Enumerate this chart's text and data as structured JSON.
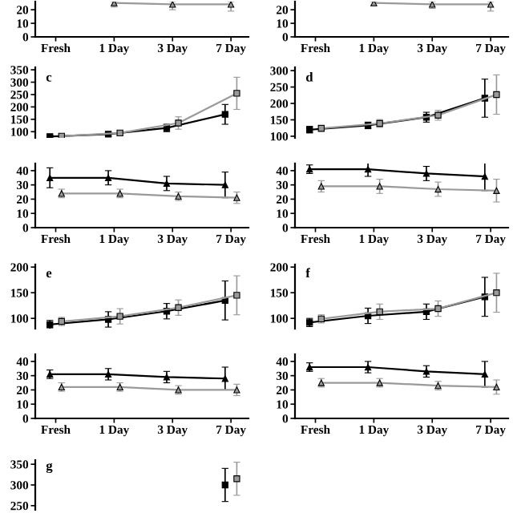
{
  "chart_data": [
    {
      "type": "line",
      "categories": [
        "Fresh",
        "1 Day",
        "3 Day",
        "7 Day"
      ],
      "ylim": [
        0,
        26
      ],
      "yticks": [
        0,
        10,
        20
      ],
      "series": [
        {
          "color": "#9a9a9a",
          "marker": "triangle",
          "values": [
            null,
            25,
            24,
            24
          ],
          "errors": [
            null,
            [
              22,
              26
            ],
            [
              20,
              26
            ],
            [
              19,
              26
            ]
          ]
        }
      ]
    },
    {
      "type": "line",
      "categories": [
        "Fresh",
        "1 Day",
        "3 Day",
        "7 Day"
      ],
      "ylim": [
        0,
        26
      ],
      "yticks": [
        0,
        10,
        20
      ],
      "series": [
        {
          "color": "#9a9a9a",
          "marker": "triangle",
          "values": [
            null,
            25,
            24,
            24
          ],
          "errors": [
            null,
            [
              23,
              26
            ],
            [
              21,
              26
            ],
            [
              19,
              26
            ]
          ]
        }
      ]
    },
    {
      "type": "line",
      "categories": [
        null,
        null,
        null,
        null
      ],
      "ylim": [
        75,
        360
      ],
      "yticks": [
        100,
        150,
        200,
        250,
        300,
        350
      ],
      "tick_labels": "y",
      "annotations": [
        "c"
      ],
      "series": [
        {
          "color": "#000000",
          "marker": "square",
          "values": [
            80,
            90,
            115,
            170
          ],
          "errors": [
            6,
            8,
            15,
            40
          ]
        },
        {
          "color": "#9a9a9a",
          "marker": "square",
          "values": [
            82,
            95,
            135,
            255
          ],
          "errors": [
            8,
            10,
            25,
            65
          ]
        }
      ]
    },
    {
      "type": "line",
      "categories": [
        null,
        null,
        null,
        null
      ],
      "ylim": [
        95,
        310
      ],
      "yticks": [
        100,
        150,
        200,
        250,
        300
      ],
      "tick_labels": "y",
      "annotations": [
        "d"
      ],
      "series": [
        {
          "color": "#000000",
          "marker": "square",
          "values": [
            120,
            133,
            158,
            216
          ],
          "errors": [
            10,
            10,
            15,
            58
          ]
        },
        {
          "color": "#9a9a9a",
          "marker": "square",
          "values": [
            124,
            139,
            164,
            227
          ],
          "errors": [
            10,
            12,
            15,
            60
          ]
        }
      ]
    },
    {
      "type": "line",
      "categories": [
        "Fresh",
        "1 Day",
        "3 Day",
        "7 Day"
      ],
      "ylim": [
        0,
        45
      ],
      "yticks": [
        0,
        10,
        20,
        30,
        40
      ],
      "series": [
        {
          "color": "#000000",
          "marker": "triangle",
          "values": [
            35,
            35,
            31,
            30
          ],
          "errors": [
            7,
            5,
            5,
            9
          ]
        },
        {
          "color": "#9a9a9a",
          "marker": "triangle",
          "values": [
            24,
            24,
            22,
            21
          ],
          "errors": [
            3,
            3,
            3,
            4
          ]
        }
      ]
    },
    {
      "type": "line",
      "categories": [
        "Fresh",
        "1 Day",
        "3 Day",
        "7 Day"
      ],
      "ylim": [
        0,
        45
      ],
      "yticks": [
        0,
        10,
        20,
        30,
        40
      ],
      "series": [
        {
          "color": "#000000",
          "marker": "triangle",
          "values": [
            41,
            41,
            38,
            36
          ],
          "errors": [
            3,
            5,
            5,
            10
          ]
        },
        {
          "color": "#9a9a9a",
          "marker": "triangle",
          "values": [
            29,
            29,
            27,
            26
          ],
          "errors": [
            4,
            5,
            5,
            8
          ]
        }
      ]
    },
    {
      "type": "line",
      "categories": [
        null,
        null,
        null,
        null
      ],
      "ylim": [
        80,
        205
      ],
      "yticks": [
        100,
        150,
        200
      ],
      "tick_labels": "y",
      "annotations": [
        "e"
      ],
      "series": [
        {
          "color": "#000000",
          "marker": "square",
          "values": [
            88,
            98,
            114,
            135
          ],
          "errors": [
            8,
            15,
            15,
            38
          ]
        },
        {
          "color": "#9a9a9a",
          "marker": "square",
          "values": [
            94,
            104,
            121,
            145
          ],
          "errors": [
            8,
            15,
            15,
            38
          ]
        }
      ]
    },
    {
      "type": "line",
      "categories": [
        null,
        null,
        null,
        null
      ],
      "ylim": [
        80,
        205
      ],
      "yticks": [
        100,
        150,
        200
      ],
      "tick_labels": "y",
      "annotations": [
        "f"
      ],
      "series": [
        {
          "color": "#000000",
          "marker": "square",
          "values": [
            92,
            105,
            113,
            142
          ],
          "errors": [
            8,
            15,
            15,
            38
          ]
        },
        {
          "color": "#9a9a9a",
          "marker": "square",
          "values": [
            99,
            113,
            119,
            150
          ],
          "errors": [
            8,
            15,
            15,
            38
          ]
        }
      ]
    },
    {
      "type": "line",
      "categories": [
        "Fresh",
        "1 Day",
        "3 Day",
        "7 Day"
      ],
      "ylim": [
        0,
        45
      ],
      "yticks": [
        0,
        10,
        20,
        30,
        40
      ],
      "series": [
        {
          "color": "#000000",
          "marker": "triangle",
          "values": [
            31,
            31,
            29,
            28
          ],
          "errors": [
            3,
            4,
            4,
            8
          ]
        },
        {
          "color": "#9a9a9a",
          "marker": "triangle",
          "values": [
            22,
            22,
            20,
            20
          ],
          "errors": [
            3,
            3,
            3,
            4
          ]
        }
      ]
    },
    {
      "type": "line",
      "categories": [
        "Fresh",
        "1 Day",
        "3 Day",
        "7 Day"
      ],
      "ylim": [
        0,
        45
      ],
      "yticks": [
        0,
        10,
        20,
        30,
        40
      ],
      "series": [
        {
          "color": "#000000",
          "marker": "triangle",
          "values": [
            36,
            36,
            33,
            31
          ],
          "errors": [
            3,
            4,
            4,
            9
          ]
        },
        {
          "color": "#9a9a9a",
          "marker": "triangle",
          "values": [
            25,
            25,
            23,
            22
          ],
          "errors": [
            3,
            3,
            3,
            5
          ]
        }
      ]
    },
    {
      "type": "line",
      "categories": [
        null,
        null,
        null,
        null
      ],
      "ylim": [
        240,
        360
      ],
      "yticks": [
        250,
        300,
        350
      ],
      "tick_labels": "y",
      "annotations": [
        "g"
      ],
      "series": [
        {
          "color": "#000000",
          "marker": "square",
          "values": [
            null,
            null,
            null,
            300
          ],
          "errors": [
            null,
            null,
            null,
            40
          ]
        },
        {
          "color": "#9a9a9a",
          "marker": "square",
          "values": [
            null,
            null,
            null,
            315
          ],
          "errors": [
            null,
            null,
            null,
            40
          ]
        }
      ]
    }
  ]
}
